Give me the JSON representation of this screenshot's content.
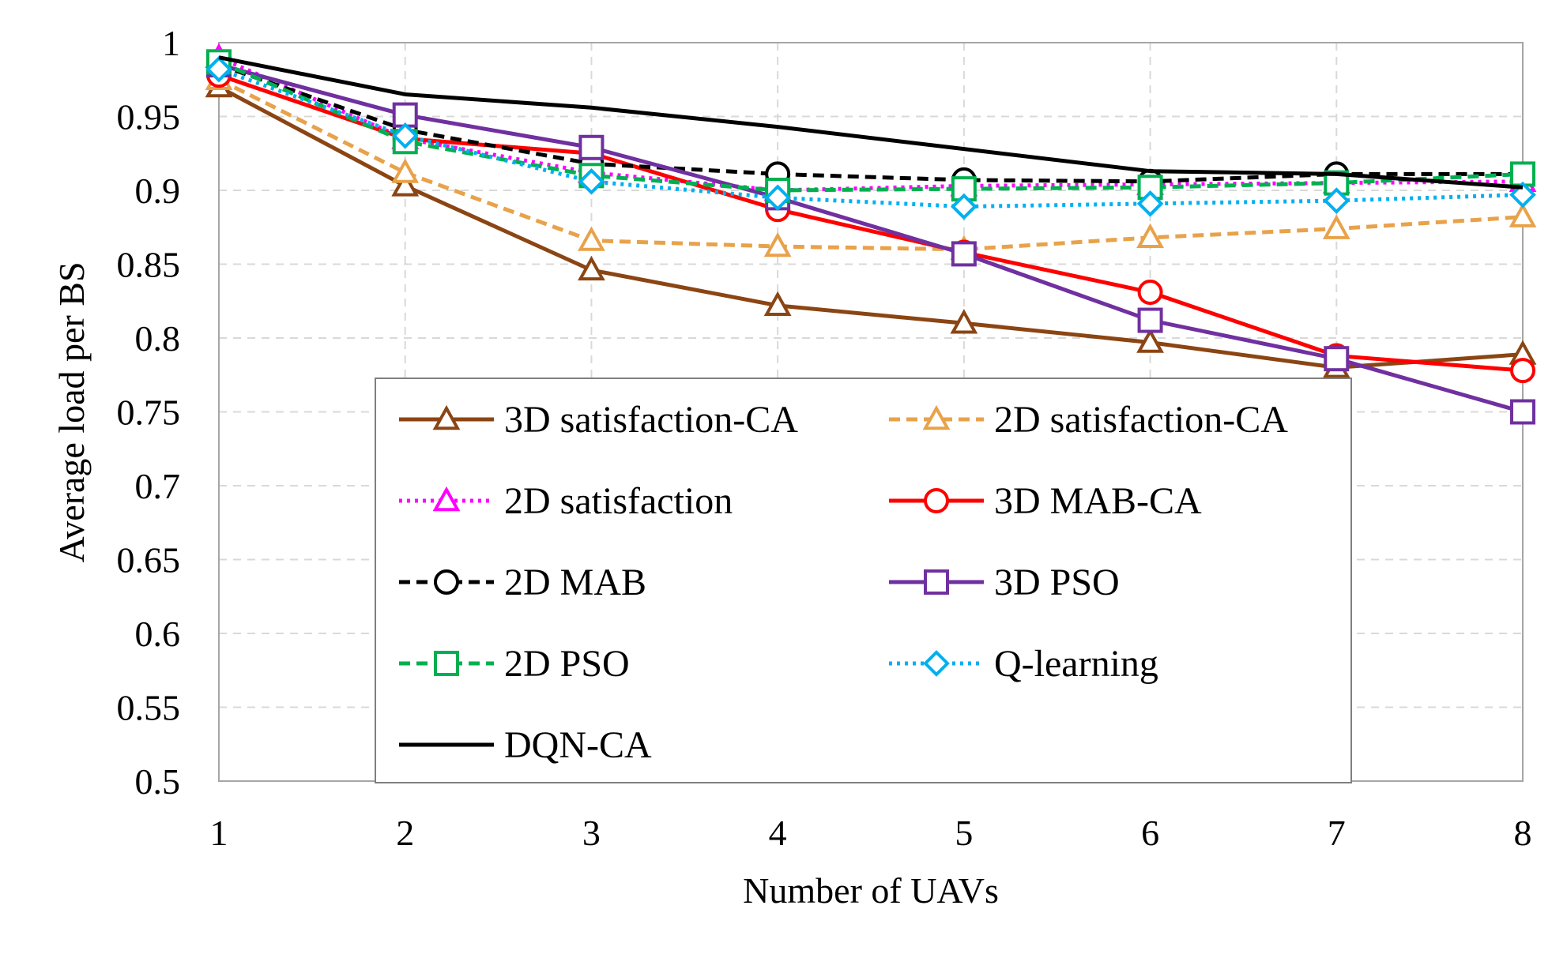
{
  "chart_data": {
    "type": "line",
    "xlabel": "Number of UAVs",
    "ylabel": "Average load per BS",
    "x": [
      1,
      2,
      3,
      4,
      5,
      6,
      7,
      8
    ],
    "xlim": [
      1,
      8
    ],
    "ylim": [
      0.5,
      1
    ],
    "ytick_labels": [
      "0.5",
      "0.55",
      "0.6",
      "0.65",
      "0.7",
      "0.75",
      "0.8",
      "0.85",
      "0.9",
      "0.95",
      "1"
    ],
    "xtick_labels": [
      "1",
      "2",
      "3",
      "4",
      "5",
      "6",
      "7",
      "8"
    ],
    "grid": true,
    "legend_position": "bottom-center",
    "series": [
      {
        "name": "3D satisfaction-CA",
        "color": "#8B4513",
        "dash": "solid",
        "marker": "triangle",
        "values": [
          0.97,
          0.903,
          0.846,
          0.822,
          0.81,
          0.797,
          0.78,
          0.789
        ]
      },
      {
        "name": "2D satisfaction-CA",
        "color": "#E8A24A",
        "dash": "dash",
        "marker": "triangle",
        "values": [
          0.975,
          0.912,
          0.866,
          0.862,
          0.86,
          0.868,
          0.874,
          0.882
        ]
      },
      {
        "name": "2D satisfaction",
        "color": "#FF00FF",
        "dash": "dot",
        "marker": "triangle",
        "values": [
          0.99,
          0.935,
          0.912,
          0.9,
          0.903,
          0.904,
          0.905,
          0.906
        ]
      },
      {
        "name": "3D MAB-CA",
        "color": "#FF0000",
        "dash": "solid",
        "marker": "circle",
        "values": [
          0.978,
          0.935,
          0.925,
          0.887,
          0.858,
          0.831,
          0.788,
          0.778
        ]
      },
      {
        "name": "2D MAB",
        "color": "#000000",
        "dash": "dash",
        "marker": "circle",
        "values": [
          0.985,
          0.941,
          0.918,
          0.911,
          0.907,
          0.906,
          0.911,
          0.911
        ]
      },
      {
        "name": "3D PSO",
        "color": "#7030A0",
        "dash": "solid",
        "marker": "square",
        "values": [
          0.985,
          0.951,
          0.929,
          0.895,
          0.857,
          0.812,
          0.786,
          0.75
        ]
      },
      {
        "name": "2D PSO",
        "color": "#00B050",
        "dash": "dash",
        "marker": "square",
        "values": [
          0.987,
          0.933,
          0.91,
          0.9,
          0.901,
          0.902,
          0.905,
          0.911
        ]
      },
      {
        "name": "Q-learning",
        "color": "#00B0F0",
        "dash": "dot",
        "marker": "diamond",
        "values": [
          0.982,
          0.937,
          0.906,
          0.895,
          0.889,
          0.891,
          0.893,
          0.897
        ]
      },
      {
        "name": "DQN-CA",
        "color": "#000000",
        "dash": "solid",
        "marker": "none",
        "values": [
          0.99,
          0.965,
          0.956,
          0.943,
          0.928,
          0.913,
          0.911,
          0.902
        ]
      }
    ]
  }
}
